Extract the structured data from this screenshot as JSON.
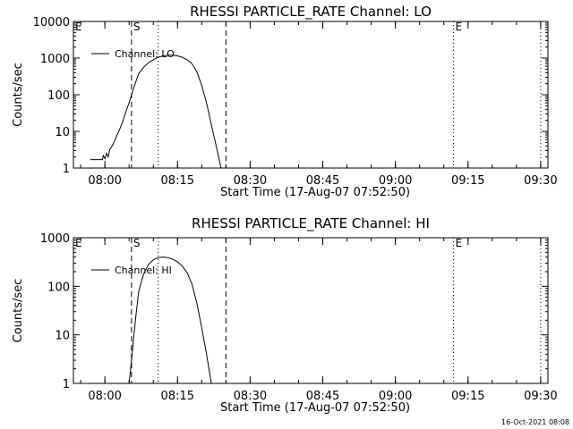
{
  "footer": {
    "timestamp": "16-Oct-2021 08:08"
  },
  "chart_data": [
    {
      "type": "line",
      "title": "RHESSI PARTICLE_RATE Channel: LO",
      "xlabel": "Start Time (17-Aug-07 07:52:50)",
      "ylabel": "Counts/sec",
      "y_scale": "log",
      "ylim": [
        1,
        10000
      ],
      "y_ticks": [
        {
          "value": 1,
          "label": "1"
        },
        {
          "value": 10,
          "label": "10"
        },
        {
          "value": 100,
          "label": "100"
        },
        {
          "value": 1000,
          "label": "1000"
        },
        {
          "value": 10000,
          "label": "10000"
        }
      ],
      "xlim": [
        "07:53:30",
        "09:31:30"
      ],
      "x_ticks": [
        {
          "value": "08:00",
          "label": "08:00"
        },
        {
          "value": "08:15",
          "label": "08:15"
        },
        {
          "value": "08:30",
          "label": "08:30"
        },
        {
          "value": "08:45",
          "label": "08:45"
        },
        {
          "value": "09:00",
          "label": "09:00"
        },
        {
          "value": "09:15",
          "label": "09:15"
        },
        {
          "value": "09:30",
          "label": "09:30"
        }
      ],
      "markers": [
        {
          "label": "E",
          "time": "07:53:30",
          "style": "none"
        },
        {
          "label": "S",
          "time": "08:05:30",
          "style": "dashed"
        },
        {
          "label": "",
          "time": "08:11:00",
          "style": "dotted"
        },
        {
          "label": "",
          "time": "08:25:00",
          "style": "dashed"
        },
        {
          "label": "E",
          "time": "09:12:00",
          "style": "dotted"
        },
        {
          "label": "",
          "time": "09:30:00",
          "style": "dotted"
        }
      ],
      "legend": "top-left",
      "series": [
        {
          "name": "Channel: LO",
          "points": [
            [
              "07:57:00",
              1.7
            ],
            [
              "07:58:00",
              1.7
            ],
            [
              "07:59:30",
              1.7
            ],
            [
              "07:59:40",
              2.2
            ],
            [
              "08:00:00",
              1.8
            ],
            [
              "08:00:20",
              2.5
            ],
            [
              "08:00:40",
              2.0
            ],
            [
              "08:01:00",
              3.2
            ],
            [
              "08:01:30",
              4.0
            ],
            [
              "08:02:00",
              5.5
            ],
            [
              "08:02:30",
              8.0
            ],
            [
              "08:03:00",
              11
            ],
            [
              "08:03:30",
              16
            ],
            [
              "08:04:00",
              25
            ],
            [
              "08:04:30",
              40
            ],
            [
              "08:05:00",
              60
            ],
            [
              "08:05:30",
              100
            ],
            [
              "08:06:00",
              160
            ],
            [
              "08:06:30",
              250
            ],
            [
              "08:07:00",
              380
            ],
            [
              "08:08:00",
              560
            ],
            [
              "08:09:00",
              750
            ],
            [
              "08:10:00",
              900
            ],
            [
              "08:11:00",
              1050
            ],
            [
              "08:12:00",
              1150
            ],
            [
              "08:13:00",
              1200
            ],
            [
              "08:14:00",
              1200
            ],
            [
              "08:15:00",
              1150
            ],
            [
              "08:16:00",
              1050
            ],
            [
              "08:17:00",
              900
            ],
            [
              "08:18:00",
              700
            ],
            [
              "08:19:00",
              420
            ],
            [
              "08:20:00",
              180
            ],
            [
              "08:21:00",
              60
            ],
            [
              "08:22:00",
              15
            ],
            [
              "08:23:00",
              4
            ],
            [
              "08:24:00",
              1
            ]
          ]
        }
      ]
    },
    {
      "type": "line",
      "title": "RHESSI PARTICLE_RATE Channel: HI",
      "xlabel": "Start Time (17-Aug-07 07:52:50)",
      "ylabel": "Counts/sec",
      "y_scale": "log",
      "ylim": [
        1,
        1000
      ],
      "y_ticks": [
        {
          "value": 1,
          "label": "1"
        },
        {
          "value": 10,
          "label": "10"
        },
        {
          "value": 100,
          "label": "100"
        },
        {
          "value": 1000,
          "label": "1000"
        }
      ],
      "xlim": [
        "07:53:30",
        "09:31:30"
      ],
      "x_ticks": [
        {
          "value": "08:00",
          "label": "08:00"
        },
        {
          "value": "08:15",
          "label": "08:15"
        },
        {
          "value": "08:30",
          "label": "08:30"
        },
        {
          "value": "08:45",
          "label": "08:45"
        },
        {
          "value": "09:00",
          "label": "09:00"
        },
        {
          "value": "09:15",
          "label": "09:15"
        },
        {
          "value": "09:30",
          "label": "09:30"
        }
      ],
      "markers": [
        {
          "label": "E",
          "time": "07:53:30",
          "style": "none"
        },
        {
          "label": "S",
          "time": "08:05:30",
          "style": "dashed"
        },
        {
          "label": "",
          "time": "08:11:00",
          "style": "dotted"
        },
        {
          "label": "",
          "time": "08:25:00",
          "style": "dashed"
        },
        {
          "label": "E",
          "time": "09:12:00",
          "style": "dotted"
        },
        {
          "label": "",
          "time": "09:30:00",
          "style": "dotted"
        }
      ],
      "legend": "top-left",
      "series": [
        {
          "name": "Channel: HI",
          "points": [
            [
              "08:05:00",
              1
            ],
            [
              "08:05:30",
              3
            ],
            [
              "08:06:00",
              10
            ],
            [
              "08:06:30",
              30
            ],
            [
              "08:07:00",
              80
            ],
            [
              "08:08:00",
              180
            ],
            [
              "08:09:00",
              280
            ],
            [
              "08:10:00",
              350
            ],
            [
              "08:11:00",
              390
            ],
            [
              "08:12:00",
              400
            ],
            [
              "08:13:00",
              390
            ],
            [
              "08:14:00",
              360
            ],
            [
              "08:15:00",
              320
            ],
            [
              "08:16:00",
              260
            ],
            [
              "08:17:00",
              190
            ],
            [
              "08:18:00",
              110
            ],
            [
              "08:19:00",
              45
            ],
            [
              "08:20:00",
              14
            ],
            [
              "08:21:00",
              4
            ],
            [
              "08:22:00",
              1
            ]
          ]
        }
      ]
    }
  ]
}
